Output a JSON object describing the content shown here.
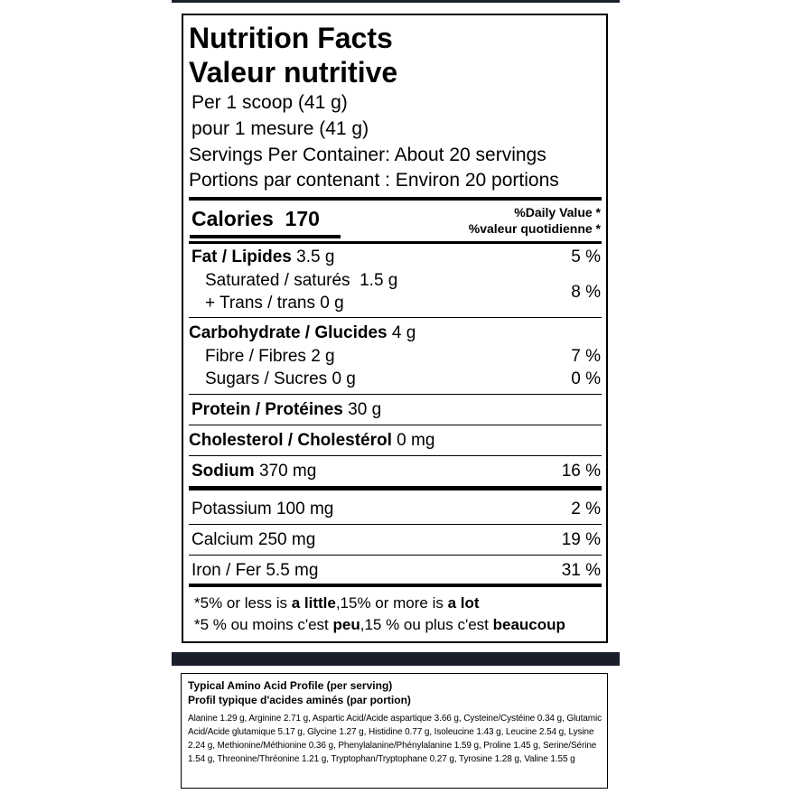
{
  "header": {
    "title_en": "Nutrition Facts",
    "title_fr": "Valeur nutritive",
    "serving_en": "Per 1 scoop (41 g)",
    "serving_fr": "pour 1 mesure (41 g)",
    "servings_en": "Servings Per Container: About 20 servings",
    "servings_fr": "Portions par contenant : Environ 20 portions"
  },
  "calories": {
    "label": "Calories",
    "value": "170"
  },
  "daily_value": {
    "en": "%Daily Value *",
    "fr": "%valeur quotidienne *"
  },
  "fat": {
    "name": "Fat / Lipides",
    "amount": "3.5 g",
    "dv": "5 %",
    "saturated": {
      "name": "Saturated / saturés",
      "amount": "1.5 g"
    },
    "trans": {
      "name": "+ Trans / trans",
      "amount": "0 g"
    },
    "saturated_trans_dv": "8 %"
  },
  "carbohydrate": {
    "name": "Carbohydrate / Glucides",
    "amount": "4 g",
    "fibre": {
      "name": "Fibre / Fibres",
      "amount": "2 g",
      "dv": "7 %"
    },
    "sugars": {
      "name": "Sugars / Sucres",
      "amount": "0 g",
      "dv": "0 %"
    }
  },
  "protein": {
    "name": "Protein / Protéines",
    "amount": "30 g"
  },
  "cholesterol": {
    "name": "Cholesterol / Cholestérol",
    "amount": "0 mg"
  },
  "sodium": {
    "name": "Sodium",
    "amount": "370 mg",
    "dv": "16 %"
  },
  "minerals": [
    {
      "name": "Potassium",
      "amount": "100 mg",
      "dv": "2 %"
    },
    {
      "name": "Calcium",
      "amount": "250 mg",
      "dv": "19 %"
    },
    {
      "name": "Iron / Fer",
      "amount": "5.5 mg",
      "dv": "31 %"
    }
  ],
  "footnote": {
    "en": [
      "*5% or less is ",
      "a little",
      ",15% or more is ",
      "a lot"
    ],
    "fr": [
      "*5 % ou moins c'est ",
      "peu",
      ",15 % ou plus c'est ",
      "beaucoup"
    ]
  },
  "amino": {
    "title_en": "Typical Amino Acid Profile (per serving)",
    "title_fr": "Profil typique d'acides aminés (par portion)",
    "text": "Alanine 1.29 g, Arginine 2.71 g, Aspartic Acid/Acide aspartique 3.66 g, Cysteine/Cystéine 0.34 g, Glutamic Acid/Acide glutamique 5.17 g, Glycine 1.27 g, Histidine 0.77 g, Isoleucine 1.43 g, Leucine 2.54 g, Lysine 2.24 g, Methionine/Méthionine 0.36 g, Phenylalanine/Phénylalanine 1.59 g, Proline 1.45 g, Serine/Sérine 1.54 g, Threonine/Thréonine 1.21 g, Tryptophan/Tryptophane 0.27 g, Tyrosine 1.28 g, Valine 1.55 g"
  }
}
